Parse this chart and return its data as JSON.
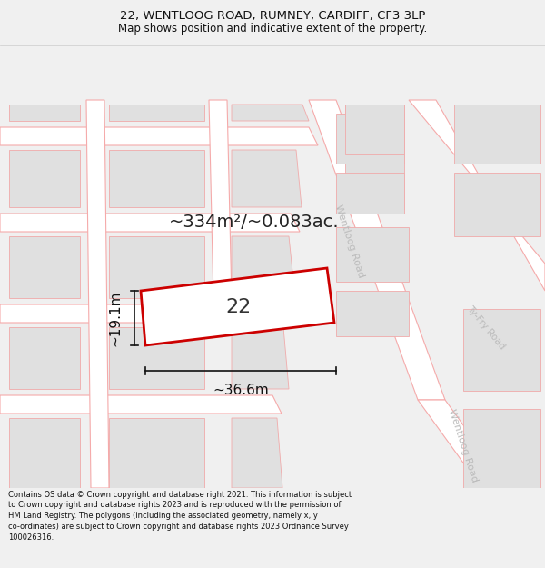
{
  "title_line1": "22, WENTLOOG ROAD, RUMNEY, CARDIFF, CF3 3LP",
  "title_line2": "Map shows position and indicative extent of the property.",
  "footer_text": "Contains OS data © Crown copyright and database right 2021. This information is subject to Crown copyright and database rights 2023 and is reproduced with the permission of HM Land Registry. The polygons (including the associated geometry, namely x, y co-ordinates) are subject to Crown copyright and database rights 2023 Ordnance Survey 100026316.",
  "area_text": "~334m²/~0.083ac.",
  "width_label": "~36.6m",
  "height_label": "~19.1m",
  "number_label": "22",
  "bg_color": "#f0f0f0",
  "map_bg_color": "#ffffff",
  "road_line_color": "#f5aaaa",
  "road_fill_color": "#ffffff",
  "building_fill_color": "#e0e0e0",
  "building_edge_color": "#f0aaaa",
  "highlight_fill": "#ffffff",
  "highlight_stroke": "#cc0000",
  "road_text_color": "#bbbbbb",
  "dim_line_color": "#111111",
  "title_color": "#111111",
  "footer_color": "#111111",
  "title_fontsize": 9.5,
  "subtitle_fontsize": 8.5,
  "footer_fontsize": 6.0,
  "area_fontsize": 14,
  "label_fontsize": 11,
  "number_fontsize": 16
}
